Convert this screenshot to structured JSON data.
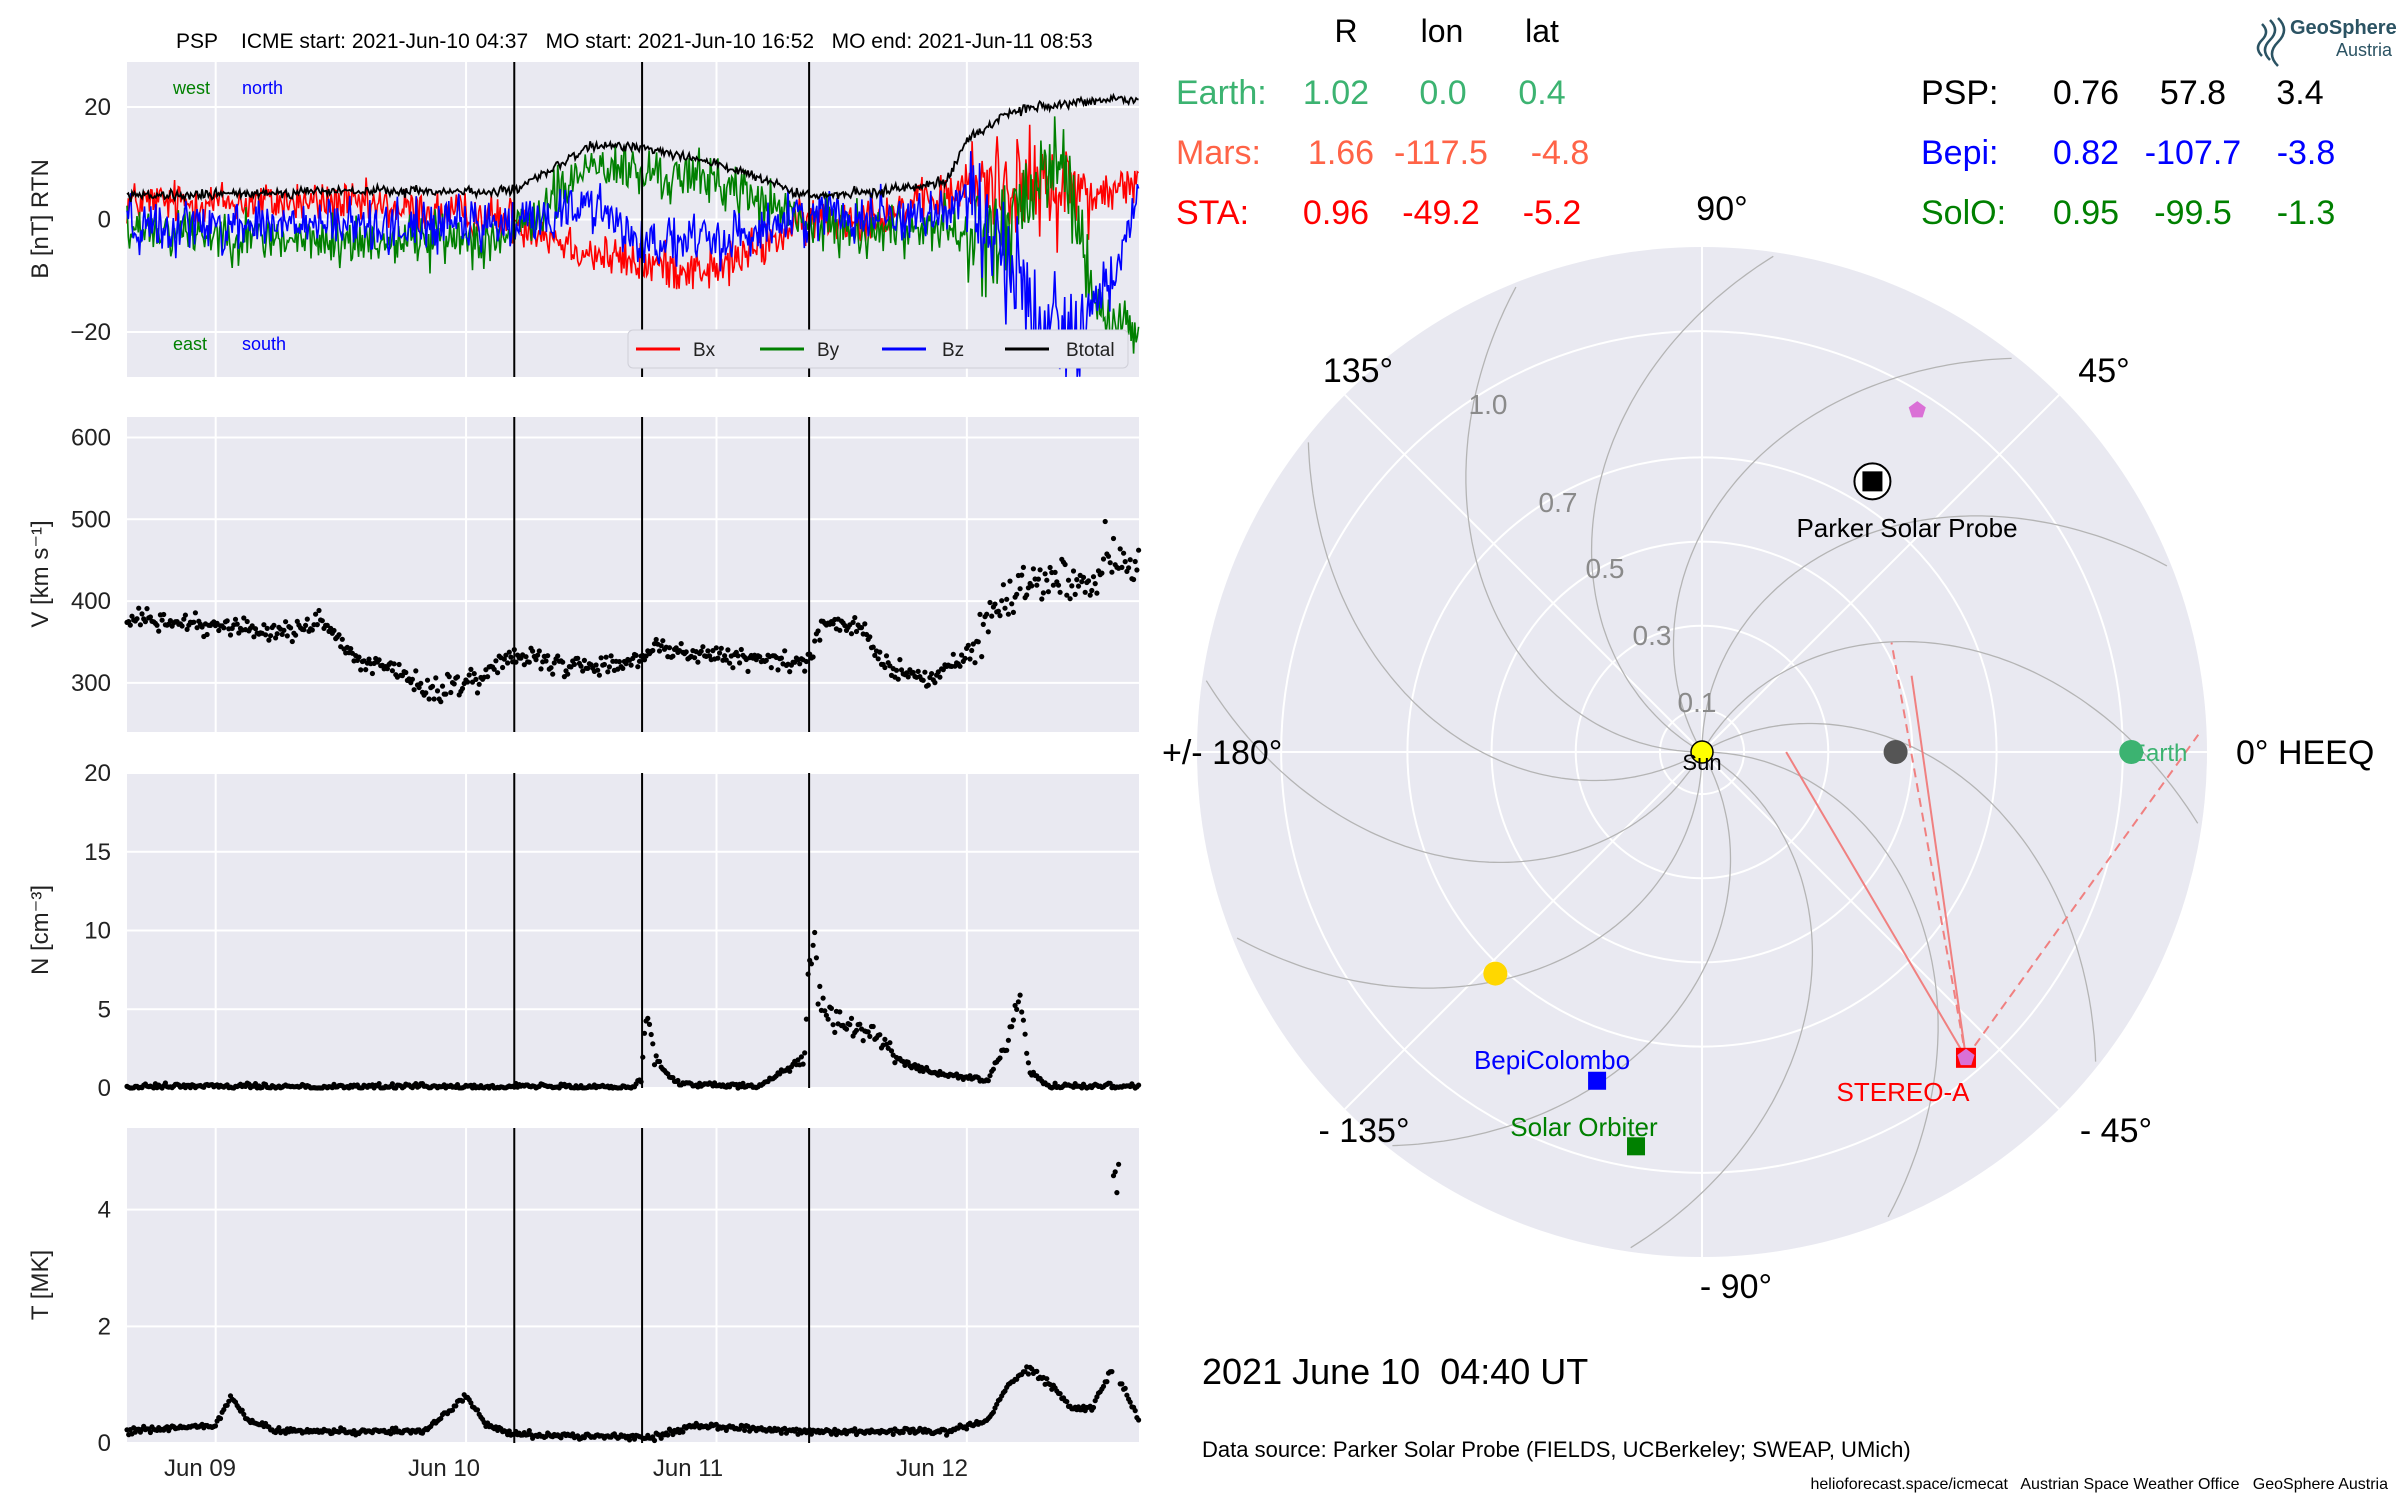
{
  "colors": {
    "panel_bg": "#e9e9f1",
    "grid": "#ffffff",
    "bx": "#ff0000",
    "by": "#008000",
    "bz": "#0000ff",
    "btotal": "#000000",
    "earth": "#3cb371",
    "mars": "#ff6347",
    "sta": "#ff0000",
    "bepi": "#0000ff",
    "solo": "#008000",
    "psp": "#000000",
    "sun": "#ffff00",
    "venus": "#ffd700",
    "mercury": "#555555",
    "ecliptic_marker": "#da70d6",
    "fieldline": "#b4b4b4",
    "sta_line": "#f08080"
  },
  "insitu": {
    "title": "PSP    ICME start: 2021-Jun-10 04:37   MO start: 2021-Jun-10 16:52   MO end: 2021-Jun-11 08:53",
    "spacecraft_label": "PSP",
    "x_tick_labels": [
      "Jun 09",
      "Jun 10",
      "Jun 11",
      "Jun 12"
    ],
    "event_lines_hours": [
      28.62,
      40.87,
      56.88
    ],
    "time_range_hours": [
      -8.5,
      88.5
    ]
  },
  "chart_data": [
    {
      "type": "line",
      "ylabel": "B [nT] RTN",
      "ylim": [
        -28,
        28
      ],
      "yticks": [
        -20,
        0,
        20
      ],
      "yticks_text": [
        "−20",
        "0",
        "20"
      ],
      "corner_labels": {
        "west": "west",
        "north": "north",
        "east": "east",
        "south": "south"
      },
      "legend": [
        "Bx",
        "By",
        "Bz",
        "Btotal"
      ],
      "segments": {
        "t": [
          -8.5,
          10,
          28.6,
          36,
          40.9,
          48,
          56.9,
          64,
          70,
          72,
          76,
          78,
          80,
          82,
          84,
          86,
          88.5
        ],
        "bx": [
          3,
          3,
          0,
          -6,
          -8,
          -9,
          0,
          1,
          4,
          6,
          7,
          6,
          5,
          6,
          4,
          5,
          6
        ],
        "by": [
          -1,
          -4,
          -3,
          10,
          8,
          7,
          -1,
          -2,
          -1,
          -4,
          -2,
          3,
          10,
          7,
          -15,
          -18,
          -19
        ],
        "bz": [
          -1,
          -1,
          -1,
          3,
          -4,
          -4,
          1,
          1,
          1,
          5,
          -8,
          -15,
          -18,
          -19,
          -16,
          -10,
          5
        ],
        "btotal": [
          4,
          5,
          5,
          13,
          13,
          10,
          4,
          5,
          7,
          14,
          19,
          20,
          20,
          20.5,
          21,
          21.5,
          21.5
        ],
        "noise": [
          3.5,
          4,
          4,
          3.8
        ]
      }
    },
    {
      "type": "scatter",
      "ylabel": "V [km s⁻¹]",
      "ylim": [
        240,
        625
      ],
      "yticks": [
        300,
        400,
        500,
        600
      ],
      "yticks_text": [
        "300",
        "400",
        "500",
        "600"
      ],
      "profile": {
        "t": [
          -8.5,
          0,
          6,
          10,
          14,
          18,
          20,
          24,
          28.6,
          32,
          36,
          40.8,
          42,
          46,
          50,
          56.8,
          58,
          62,
          64,
          68,
          72,
          75,
          78,
          80,
          84,
          86,
          88.5
        ],
        "v": [
          378,
          372,
          360,
          375,
          322,
          312,
          290,
          300,
          335,
          322,
          318,
          330,
          345,
          335,
          330,
          325,
          370,
          370,
          320,
          305,
          330,
          400,
          425,
          435,
          420,
          450,
          435
        ],
        "noise": 10
      }
    },
    {
      "type": "scatter",
      "ylabel": "N [cm⁻³]",
      "ylim": [
        0,
        20
      ],
      "yticks": [
        0,
        5,
        10,
        15,
        20
      ],
      "yticks_text": [
        "0",
        "5",
        "10",
        "15",
        "20"
      ],
      "profile": {
        "t": [
          -8.5,
          40,
          40.8,
          41.3,
          42,
          44,
          46,
          52,
          56.5,
          56.9,
          57.5,
          58,
          60,
          63,
          66,
          70,
          74,
          76,
          77,
          78,
          80,
          88.5
        ],
        "n": [
          0.1,
          0.1,
          0.5,
          5.5,
          2,
          0.4,
          0.2,
          0.1,
          2,
          9.8,
          8,
          5.5,
          4,
          3.5,
          1.5,
          0.8,
          0.5,
          3,
          6,
          1,
          0.1,
          0.1
        ],
        "noise": 0.5
      }
    },
    {
      "type": "scatter",
      "ylabel": "T [MK]",
      "ylim": [
        0,
        5.4
      ],
      "yticks": [
        0,
        2,
        4
      ],
      "yticks_text": [
        "0",
        "2",
        "4"
      ],
      "profile": {
        "t": [
          -8.5,
          0,
          1.5,
          3,
          6,
          20,
          24,
          26,
          28.6,
          42,
          46,
          56.9,
          70,
          74,
          76,
          78,
          80,
          82,
          84,
          86,
          88.5
        ],
        "T": [
          0.2,
          0.3,
          0.8,
          0.4,
          0.2,
          0.2,
          0.8,
          0.3,
          0.15,
          0.1,
          0.3,
          0.2,
          0.2,
          0.4,
          1.0,
          1.3,
          1.0,
          0.6,
          0.6,
          1.3,
          0.4
        ],
        "noise": 0.15
      }
    },
    {
      "type": "scatter",
      "subtype": "polar",
      "angle_labels": {
        "a0": "0° HEEQ",
        "a45": "45°",
        "a90": "90°",
        "a135": "135°",
        "a180": "+/- 180°",
        "am135": "- 135°",
        "am90": "- 90°",
        "am45": "- 45°"
      },
      "radial_ticks": [
        0.1,
        0.3,
        0.5,
        0.7,
        1.0
      ],
      "radial_tick_labels": [
        "0.1",
        "0.3",
        "0.5",
        "0.7",
        "1.0"
      ],
      "rmax": 1.2,
      "bodies": [
        {
          "name": "Sun",
          "label": "Sun",
          "r": 0,
          "lon": 0
        },
        {
          "name": "Earth",
          "label": "Earth",
          "r": 1.02,
          "lon": 0.0
        },
        {
          "name": "Parker Solar Probe",
          "label": "Parker Solar Probe",
          "r": 0.76,
          "lon": 57.8
        },
        {
          "name": "STEREO-A",
          "label": "STEREO-A",
          "r": 0.96,
          "lon": -49.2
        },
        {
          "name": "BepiColombo",
          "label": "BepiColombo",
          "r": 0.82,
          "lon": -107.7
        },
        {
          "name": "Solar Orbiter",
          "label": "Solar Orbiter",
          "r": 0.95,
          "lon": -99.5
        },
        {
          "name": "Venus",
          "label": "",
          "r": 0.72,
          "lon": -133
        },
        {
          "name": "Mercury",
          "label": "",
          "r": 0.46,
          "lon": 0
        }
      ],
      "ecliptic_markers": [
        {
          "r": 0.96,
          "lon": 57.8
        },
        {
          "r": 0.96,
          "lon": -49.2
        }
      ]
    }
  ],
  "positions_header": {
    "R": "R",
    "lon": "lon",
    "lat": "lat"
  },
  "positions": {
    "earth": {
      "name": "Earth:",
      "R": "1.02",
      "lon": "0.0",
      "lat": "0.4"
    },
    "mars": {
      "name": "Mars:",
      "R": "1.66",
      "lon": "-117.5",
      "lat": "-4.8"
    },
    "sta": {
      "name": "STA:",
      "R": "0.96",
      "lon": "-49.2",
      "lat": "-5.2"
    },
    "psp": {
      "name": "PSP:",
      "R": "0.76",
      "lon": "57.8",
      "lat": "3.4"
    },
    "bepi": {
      "name": "Bepi:",
      "R": "0.82",
      "lon": "-107.7",
      "lat": "-3.8"
    },
    "solo": {
      "name": "SolO:",
      "R": "0.95",
      "lon": "-99.5",
      "lat": "-1.3"
    }
  },
  "logo": {
    "line1": "GeoSphere",
    "line2": "Austria"
  },
  "footer": {
    "datetime": "2021 June 10  04:40 UT",
    "source": "Data source: Parker Solar Probe (FIELDS, UCBerkeley; SWEAP, UMich)",
    "credits": "helioforecast.space/icmecat   Austrian Space Weather Office   GeoSphere Austria"
  }
}
